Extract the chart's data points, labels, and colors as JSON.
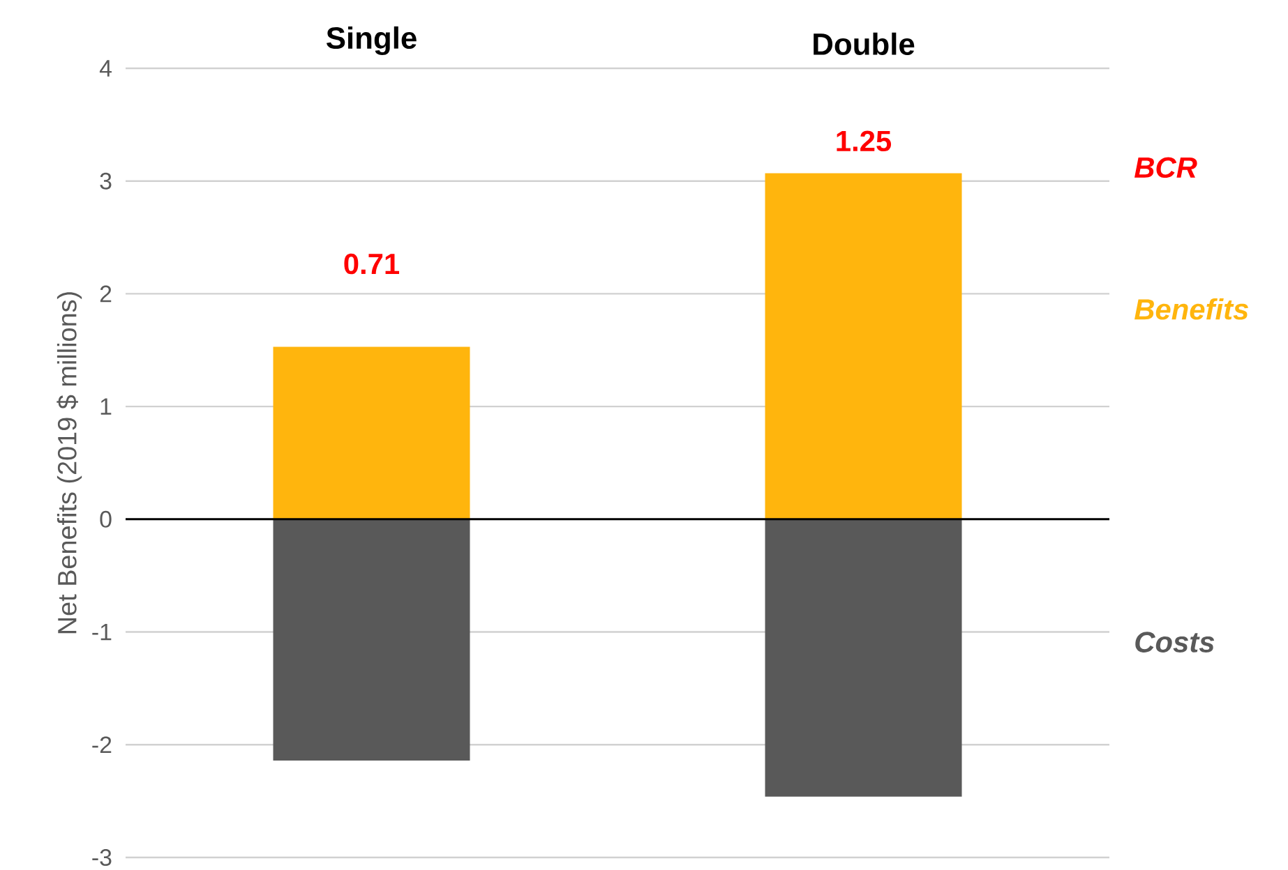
{
  "chart_data": {
    "type": "bar",
    "ylabel": "Net Benefits (2019 $ millions)",
    "categories": [
      "Single",
      "Double"
    ],
    "series": [
      {
        "name": "Benefits",
        "color": "#ffb50d",
        "values": [
          1.53,
          3.07
        ]
      },
      {
        "name": "Costs",
        "color": "#595959",
        "values": [
          -2.14,
          -2.46
        ]
      }
    ],
    "stacked": true,
    "ylim": [
      -3,
      4
    ],
    "yticks": [
      -3,
      -2,
      -1,
      0,
      1,
      2,
      3,
      4
    ],
    "grid": "y",
    "annotations": [
      "0.71",
      "1.25",
      "BCR"
    ]
  }
}
